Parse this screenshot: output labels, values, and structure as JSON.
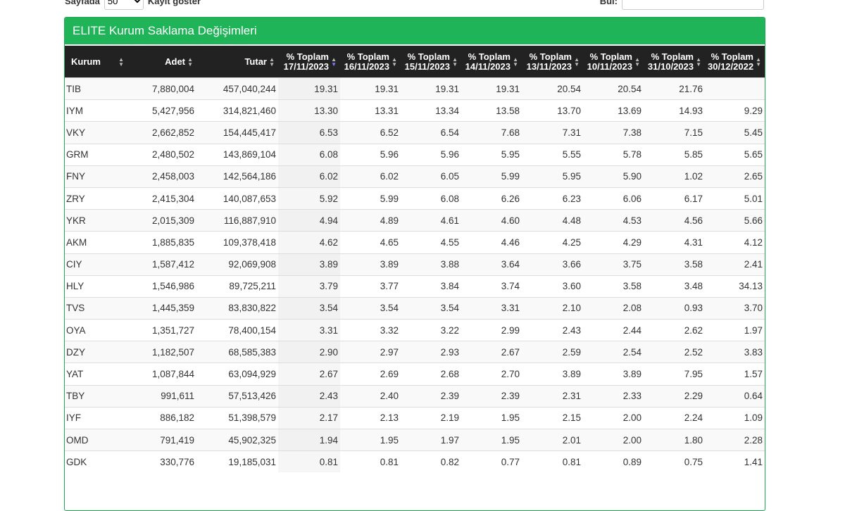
{
  "controls": {
    "length_prefix": "Sayfada",
    "length_value": "50",
    "length_suffix": "Kayıt göster",
    "search_label": "Bul:"
  },
  "panel": {
    "title": "ELITE Kurum Saklama Değişimleri"
  },
  "table": {
    "headers": [
      [
        "Kurum"
      ],
      [
        "Adet"
      ],
      [
        "Tutar"
      ],
      [
        "% Toplam",
        "17/11/2023"
      ],
      [
        "% Toplam",
        "16/11/2023"
      ],
      [
        "% Toplam",
        "15/11/2023"
      ],
      [
        "% Toplam",
        "14/11/2023"
      ],
      [
        "% Toplam",
        "13/11/2023"
      ],
      [
        "% Toplam",
        "10/11/2023"
      ],
      [
        "% Toplam",
        "31/10/2023"
      ],
      [
        "% Toplam",
        "30/12/2022"
      ]
    ],
    "rows": [
      [
        "TIB",
        "7,880,004",
        "457,040,244",
        "19.31",
        "19.31",
        "19.31",
        "19.31",
        "20.54",
        "20.54",
        "21.76",
        null
      ],
      [
        "IYM",
        "5,427,956",
        "314,821,460",
        "13.30",
        "13.31",
        "13.34",
        "13.58",
        "13.70",
        "13.69",
        "14.93",
        "9.29"
      ],
      [
        "VKY",
        "2,662,852",
        "154,445,417",
        "6.53",
        "6.52",
        "6.54",
        "7.68",
        "7.31",
        "7.38",
        "7.15",
        "5.45"
      ],
      [
        "GRM",
        "2,480,502",
        "143,869,104",
        "6.08",
        "5.96",
        "5.96",
        "5.95",
        "5.55",
        "5.78",
        "5.85",
        "5.65"
      ],
      [
        "FNY",
        "2,458,003",
        "142,564,186",
        "6.02",
        "6.02",
        "6.05",
        "5.99",
        "5.95",
        "5.90",
        "1.02",
        "2.65"
      ],
      [
        "ZRY",
        "2,415,304",
        "140,087,653",
        "5.92",
        "5.99",
        "6.08",
        "6.26",
        "6.23",
        "6.06",
        "6.17",
        "5.01"
      ],
      [
        "YKR",
        "2,015,309",
        "116,887,910",
        "4.94",
        "4.89",
        "4.61",
        "4.60",
        "4.48",
        "4.53",
        "4.56",
        "5.66"
      ],
      [
        "AKM",
        "1,885,835",
        "109,378,418",
        "4.62",
        "4.65",
        "4.55",
        "4.46",
        "4.25",
        "4.29",
        "4.31",
        "4.12"
      ],
      [
        "CIY",
        "1,587,412",
        "92,069,908",
        "3.89",
        "3.89",
        "3.88",
        "3.64",
        "3.66",
        "3.75",
        "3.58",
        "2.41"
      ],
      [
        "HLY",
        "1,546,986",
        "89,725,211",
        "3.79",
        "3.77",
        "3.84",
        "3.74",
        "3.60",
        "3.58",
        "3.48",
        "34.13"
      ],
      [
        "TVS",
        "1,445,359",
        "83,830,822",
        "3.54",
        "3.54",
        "3.54",
        "3.31",
        "2.10",
        "2.08",
        "0.93",
        "3.70"
      ],
      [
        "OYA",
        "1,351,727",
        "78,400,154",
        "3.31",
        "3.32",
        "3.22",
        "2.99",
        "2.43",
        "2.44",
        "2.62",
        "1.97"
      ],
      [
        "DZY",
        "1,182,507",
        "68,585,383",
        "2.90",
        "2.97",
        "2.93",
        "2.67",
        "2.59",
        "2.54",
        "2.52",
        "3.83"
      ],
      [
        "YAT",
        "1,087,844",
        "63,094,929",
        "2.67",
        "2.69",
        "2.68",
        "2.70",
        "3.89",
        "3.89",
        "7.95",
        "1.57"
      ],
      [
        "TBY",
        "991,611",
        "57,513,426",
        "2.43",
        "2.40",
        "2.39",
        "2.39",
        "2.31",
        "2.33",
        "2.29",
        "0.64"
      ],
      [
        "IYF",
        "886,182",
        "51,398,579",
        "2.17",
        "2.13",
        "2.19",
        "1.95",
        "2.15",
        "2.00",
        "2.24",
        "1.09"
      ],
      [
        "OMD",
        "791,419",
        "45,902,325",
        "1.94",
        "1.95",
        "1.97",
        "1.95",
        "2.01",
        "2.00",
        "1.80",
        "2.28"
      ],
      [
        "GDK",
        "330,776",
        "19,185,031",
        "0.81",
        "0.81",
        "0.82",
        "0.77",
        "0.81",
        "0.89",
        "0.75",
        "1.41"
      ]
    ]
  }
}
